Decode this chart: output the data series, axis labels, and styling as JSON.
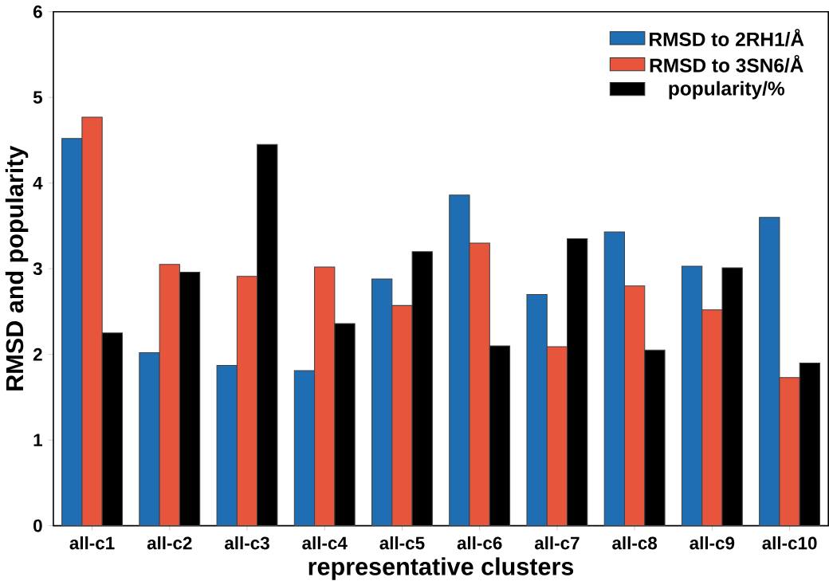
{
  "chart_data": {
    "type": "bar",
    "xlabel": "representative clusters",
    "ylabel": "RMSD and popularity",
    "categories": [
      "all-c1",
      "all-c2",
      "all-c3",
      "all-c4",
      "all-c5",
      "all-c6",
      "all-c7",
      "all-c8",
      "all-c9",
      "all-c10"
    ],
    "series": [
      {
        "name": "RMSD to 2RH1/Å",
        "color": "#1f6db3",
        "values": [
          4.52,
          2.02,
          1.87,
          1.81,
          2.88,
          3.86,
          2.7,
          3.43,
          3.03,
          3.6
        ]
      },
      {
        "name": "RMSD to 3SN6/Å",
        "color": "#e8553d",
        "values": [
          4.77,
          3.05,
          2.91,
          3.02,
          2.57,
          3.3,
          2.09,
          2.8,
          2.52,
          1.73
        ]
      },
      {
        "name": "popularity/%",
        "color": "#000000",
        "values": [
          2.25,
          2.96,
          4.45,
          2.36,
          3.2,
          2.1,
          3.35,
          2.05,
          3.01,
          1.9
        ]
      }
    ],
    "ylim": [
      0,
      6
    ],
    "yticks": [
      0,
      1,
      2,
      3,
      4,
      5,
      6
    ],
    "legend": "top right",
    "grid": false
  }
}
